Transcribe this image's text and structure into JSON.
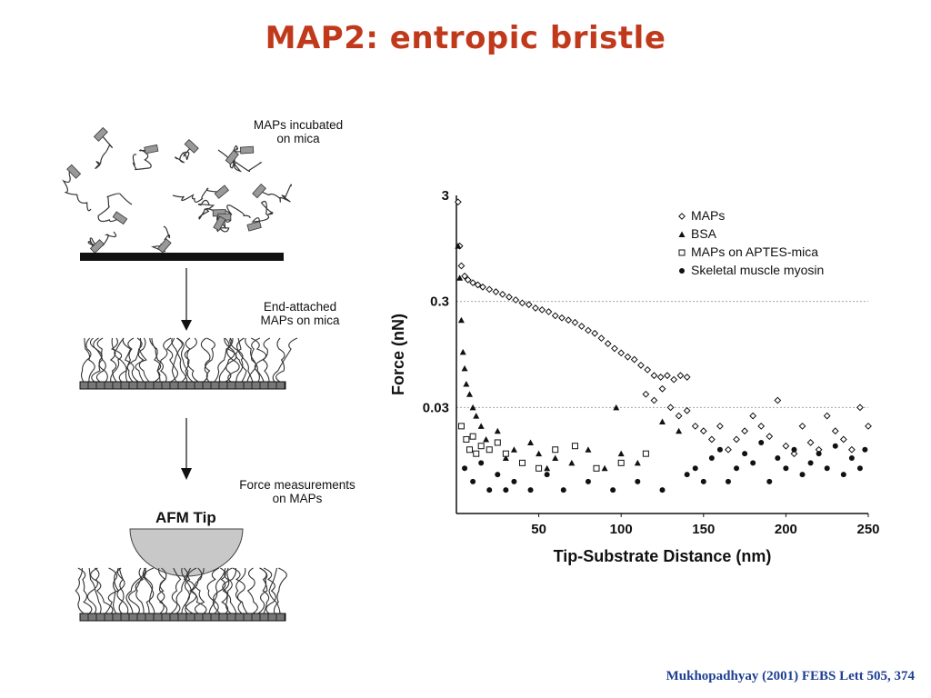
{
  "slide": {
    "title": "MAP2: entropic bristle",
    "citation": "Mukhopadhyay (2001) FEBS Lett 505, 374"
  },
  "diagram": {
    "stage1_label": "MAPs incubated\non mica",
    "stage2_label": "End-attached\nMAPs on mica",
    "stage3_label": "Force measurements\non MAPs",
    "tip_label": "AFM Tip"
  },
  "chart_data": {
    "type": "scatter",
    "xlabel": "Tip-Substrate Distance (nm)",
    "ylabel": "Force (nN)",
    "xlim": [
      0,
      250
    ],
    "ylim": [
      0.003,
      3
    ],
    "yscale": "log",
    "xticks": [
      50,
      100,
      150,
      200,
      250
    ],
    "yticks": [
      {
        "value": 3,
        "label": "3"
      },
      {
        "value": 0.3,
        "label": "0.3"
      },
      {
        "value": 0.03,
        "label": "0.03"
      }
    ],
    "grid": "horizontal dotted at 0.3 and 0.03",
    "legend_position": "top-right",
    "series": [
      {
        "name": "MAPs",
        "marker": "diamond-open",
        "points": [
          [
            1,
            2.6
          ],
          [
            2,
            1.0
          ],
          [
            3,
            0.65
          ],
          [
            5,
            0.52
          ],
          [
            7,
            0.48
          ],
          [
            10,
            0.45
          ],
          [
            13,
            0.43
          ],
          [
            16,
            0.41
          ],
          [
            20,
            0.39
          ],
          [
            24,
            0.37
          ],
          [
            28,
            0.35
          ],
          [
            32,
            0.33
          ],
          [
            36,
            0.31
          ],
          [
            40,
            0.29
          ],
          [
            44,
            0.28
          ],
          [
            48,
            0.26
          ],
          [
            52,
            0.25
          ],
          [
            56,
            0.24
          ],
          [
            60,
            0.22
          ],
          [
            64,
            0.21
          ],
          [
            68,
            0.2
          ],
          [
            72,
            0.19
          ],
          [
            76,
            0.175
          ],
          [
            80,
            0.16
          ],
          [
            84,
            0.15
          ],
          [
            88,
            0.135
          ],
          [
            92,
            0.12
          ],
          [
            96,
            0.108
          ],
          [
            100,
            0.098
          ],
          [
            104,
            0.09
          ],
          [
            108,
            0.085
          ],
          [
            112,
            0.075
          ],
          [
            116,
            0.068
          ],
          [
            120,
            0.06
          ],
          [
            124,
            0.058
          ],
          [
            128,
            0.06
          ],
          [
            132,
            0.055
          ],
          [
            136,
            0.06
          ],
          [
            140,
            0.058
          ],
          [
            115,
            0.04
          ],
          [
            120,
            0.035
          ],
          [
            125,
            0.045
          ],
          [
            130,
            0.03
          ],
          [
            135,
            0.025
          ],
          [
            140,
            0.028
          ],
          [
            145,
            0.02
          ],
          [
            150,
            0.018
          ],
          [
            155,
            0.015
          ],
          [
            160,
            0.02
          ],
          [
            165,
            0.012
          ],
          [
            170,
            0.015
          ],
          [
            175,
            0.018
          ],
          [
            180,
            0.025
          ],
          [
            185,
            0.02
          ],
          [
            190,
            0.016
          ],
          [
            195,
            0.035
          ],
          [
            200,
            0.013
          ],
          [
            205,
            0.011
          ],
          [
            210,
            0.02
          ],
          [
            215,
            0.014
          ],
          [
            220,
            0.012
          ],
          [
            225,
            0.025
          ],
          [
            230,
            0.018
          ],
          [
            235,
            0.015
          ],
          [
            240,
            0.012
          ],
          [
            245,
            0.03
          ],
          [
            250,
            0.02
          ]
        ]
      },
      {
        "name": "BSA",
        "marker": "triangle",
        "points": [
          [
            1,
            1.0
          ],
          [
            2,
            0.5
          ],
          [
            3,
            0.2
          ],
          [
            4,
            0.1
          ],
          [
            5,
            0.07
          ],
          [
            6,
            0.05
          ],
          [
            8,
            0.04
          ],
          [
            10,
            0.03
          ],
          [
            12,
            0.025
          ],
          [
            15,
            0.02
          ],
          [
            18,
            0.015
          ],
          [
            20,
            0.012
          ],
          [
            25,
            0.018
          ],
          [
            30,
            0.01
          ],
          [
            35,
            0.012
          ],
          [
            40,
            0.009
          ],
          [
            45,
            0.014
          ],
          [
            50,
            0.011
          ],
          [
            55,
            0.008
          ],
          [
            60,
            0.01
          ],
          [
            70,
            0.009
          ],
          [
            80,
            0.012
          ],
          [
            90,
            0.008
          ],
          [
            97,
            0.03
          ],
          [
            100,
            0.011
          ],
          [
            110,
            0.009
          ],
          [
            125,
            0.022
          ],
          [
            135,
            0.018
          ]
        ]
      },
      {
        "name": "MAPs on APTES-mica",
        "marker": "square-open",
        "points": [
          [
            3,
            0.02
          ],
          [
            6,
            0.015
          ],
          [
            8,
            0.012
          ],
          [
            10,
            0.016
          ],
          [
            12,
            0.011
          ],
          [
            15,
            0.013
          ],
          [
            20,
            0.012
          ],
          [
            25,
            0.014
          ],
          [
            30,
            0.011
          ],
          [
            40,
            0.009
          ],
          [
            50,
            0.008
          ],
          [
            60,
            0.012
          ],
          [
            72,
            0.013
          ],
          [
            85,
            0.008
          ],
          [
            100,
            0.009
          ],
          [
            115,
            0.011
          ]
        ]
      },
      {
        "name": "Skeletal muscle myosin",
        "marker": "dot",
        "points": [
          [
            5,
            0.008
          ],
          [
            10,
            0.006
          ],
          [
            15,
            0.009
          ],
          [
            20,
            0.005
          ],
          [
            25,
            0.007
          ],
          [
            30,
            0.005
          ],
          [
            35,
            0.006
          ],
          [
            45,
            0.005
          ],
          [
            55,
            0.007
          ],
          [
            65,
            0.005
          ],
          [
            80,
            0.006
          ],
          [
            95,
            0.005
          ],
          [
            110,
            0.006
          ],
          [
            125,
            0.005
          ],
          [
            140,
            0.007
          ],
          [
            145,
            0.008
          ],
          [
            150,
            0.006
          ],
          [
            155,
            0.01
          ],
          [
            160,
            0.012
          ],
          [
            165,
            0.006
          ],
          [
            170,
            0.008
          ],
          [
            175,
            0.011
          ],
          [
            180,
            0.009
          ],
          [
            185,
            0.014
          ],
          [
            190,
            0.006
          ],
          [
            195,
            0.01
          ],
          [
            200,
            0.008
          ],
          [
            205,
            0.012
          ],
          [
            210,
            0.007
          ],
          [
            215,
            0.009
          ],
          [
            220,
            0.011
          ],
          [
            225,
            0.008
          ],
          [
            230,
            0.013
          ],
          [
            235,
            0.007
          ],
          [
            240,
            0.01
          ],
          [
            245,
            0.008
          ],
          [
            248,
            0.012
          ]
        ]
      }
    ]
  }
}
